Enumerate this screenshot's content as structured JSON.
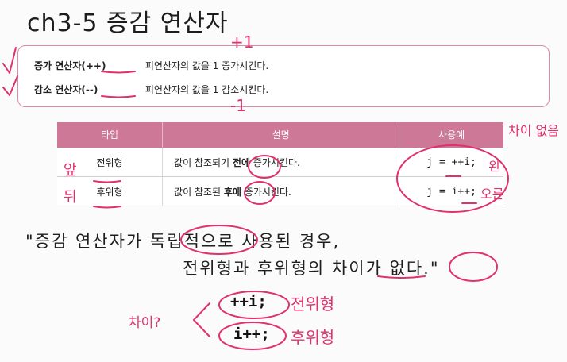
{
  "title": "ch3-5 증감 연산자",
  "callout": {
    "rows": [
      {
        "name": "증가 연산자(++)",
        "desc": "피연산자의 값을 1 증가시킨다."
      },
      {
        "name": "감소 연산자(--)",
        "desc": "피연산자의 값을 1 감소시킨다."
      }
    ]
  },
  "table": {
    "headers": [
      "타입",
      "설명",
      "사용예"
    ],
    "rows": [
      {
        "type": "전위형",
        "desc_pre": "값이 참조되기 ",
        "desc_em": "전에",
        "desc_post": " 증가시킨다.",
        "usage": "j = ++i;"
      },
      {
        "type": "후위형",
        "desc_pre": "값이 참조된 ",
        "desc_em": "후에",
        "desc_post": " 증가시킨다.",
        "usage": "j = i++;"
      }
    ]
  },
  "quote": {
    "line1": "\"증감 연산자가 독립적으로 사용된 경우,",
    "line2": "전위형과 후위형의 차이가 없다.\""
  },
  "code": {
    "pre": "++i;",
    "post": "i++;"
  },
  "handwriting": {
    "plus_one": "+1",
    "minus_one": "-1",
    "no_diff": "차이 없음",
    "front": "앞",
    "back": "뒤",
    "left": "왼",
    "right": "오른",
    "diff_q": "차이?",
    "prefix": "전위형",
    "postfix": "후위형",
    "ink_color": "#e0306e"
  }
}
